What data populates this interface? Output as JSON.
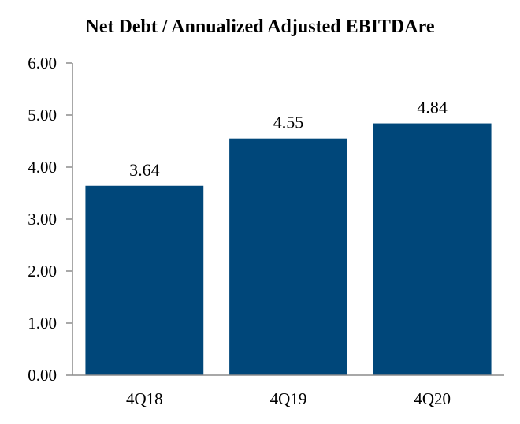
{
  "chart_data": {
    "type": "bar",
    "title": "Net Debt / Annualized Adjusted EBITDAre",
    "categories": [
      "4Q18",
      "4Q19",
      "4Q20"
    ],
    "values": [
      3.64,
      4.55,
      4.84
    ],
    "data_labels": [
      "3.64",
      "4.55",
      "4.84"
    ],
    "ylim": [
      0,
      6
    ],
    "yticks": [
      "0.00",
      "1.00",
      "2.00",
      "3.00",
      "4.00",
      "5.00",
      "6.00"
    ],
    "grid": false,
    "legend": "none",
    "bar_color": "#00477a"
  }
}
